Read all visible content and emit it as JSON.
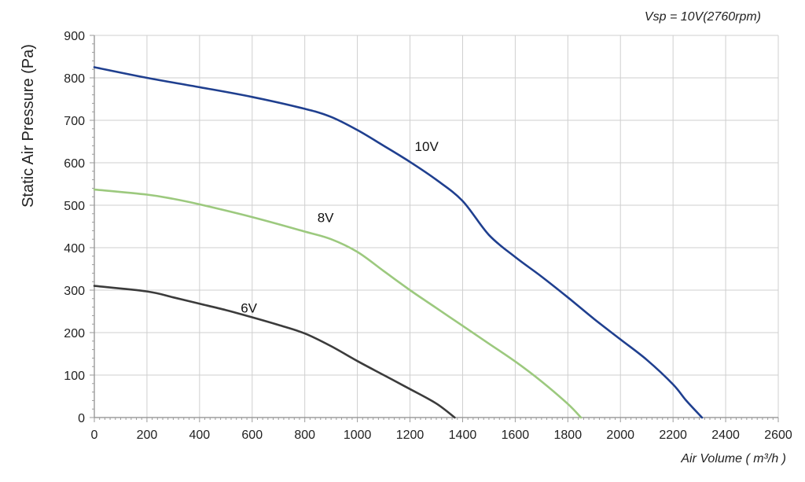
{
  "chart_data": {
    "type": "line",
    "annotation": "Vsp = 10V(2760rpm)",
    "xlabel": "Air Volume ( m³/h )",
    "ylabel": "Static Air Pressure  (Pa)",
    "xlim": [
      0,
      2600
    ],
    "ylim": [
      0,
      900
    ],
    "xticks": [
      0,
      200,
      400,
      600,
      800,
      1000,
      1200,
      1400,
      1600,
      1800,
      2000,
      2200,
      2400,
      2600
    ],
    "yticks": [
      0,
      100,
      200,
      300,
      400,
      500,
      600,
      700,
      800,
      900
    ],
    "grid": true,
    "series": [
      {
        "name": "10V",
        "color": "#1f3f8f",
        "x": [
          0,
          200,
          400,
          600,
          800,
          900,
          1000,
          1100,
          1200,
          1300,
          1400,
          1500,
          1600,
          1700,
          1800,
          1900,
          2000,
          2100,
          2200,
          2250,
          2310
        ],
        "y": [
          825,
          800,
          778,
          755,
          727,
          708,
          677,
          640,
          602,
          560,
          510,
          430,
          378,
          332,
          283,
          232,
          184,
          136,
          78,
          40,
          0
        ]
      },
      {
        "name": "8V",
        "color": "#9cc97e",
        "x": [
          0,
          200,
          300,
          400,
          600,
          800,
          900,
          1000,
          1100,
          1200,
          1300,
          1400,
          1500,
          1600,
          1700,
          1800,
          1850
        ],
        "y": [
          537,
          525,
          515,
          502,
          472,
          438,
          420,
          390,
          345,
          300,
          258,
          216,
          174,
          132,
          85,
          32,
          0
        ]
      },
      {
        "name": "6V",
        "color": "#3b3b3b",
        "x": [
          0,
          200,
          300,
          400,
          500,
          600,
          700,
          800,
          900,
          1000,
          1100,
          1200,
          1300,
          1370
        ],
        "y": [
          310,
          297,
          283,
          268,
          253,
          236,
          218,
          198,
          168,
          133,
          100,
          67,
          33,
          0
        ]
      }
    ]
  }
}
